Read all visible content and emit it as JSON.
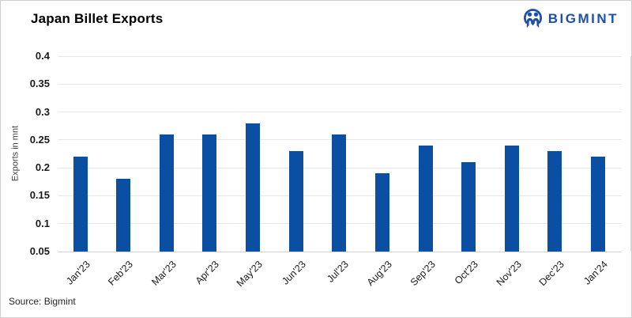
{
  "header": {
    "title": "Japan Billet Exports",
    "logo_text": "BIGMINT",
    "logo_icon": "bigmint-people-icon"
  },
  "source": {
    "text": "Source: Bigmint"
  },
  "colors": {
    "bar": "#0a4fa1",
    "logo": "#1d4faf",
    "grid": "#e8e8e8",
    "axis_line": "#d2d2d2",
    "right_border": "#dcdcdc"
  },
  "chart_data": {
    "type": "bar",
    "title": "Japan Billet Exports",
    "xlabel": "",
    "ylabel": "Exports in mnt",
    "categories": [
      "Jan'23",
      "Feb'23",
      "Mar'23",
      "Apr'23",
      "May'23",
      "Jun'23",
      "Jul'23",
      "Aug'23",
      "Sep'23",
      "Oct'23",
      "Nov'23",
      "Dec'23",
      "Jan'24"
    ],
    "values": [
      0.22,
      0.18,
      0.26,
      0.26,
      0.28,
      0.23,
      0.26,
      0.19,
      0.24,
      0.21,
      0.24,
      0.23,
      0.22
    ],
    "ylim": [
      0.05,
      0.4
    ],
    "yticks": [
      0.4,
      0.35,
      0.3,
      0.25,
      0.2,
      0.15,
      0.1,
      0.05
    ],
    "grid": true,
    "legend": false
  }
}
